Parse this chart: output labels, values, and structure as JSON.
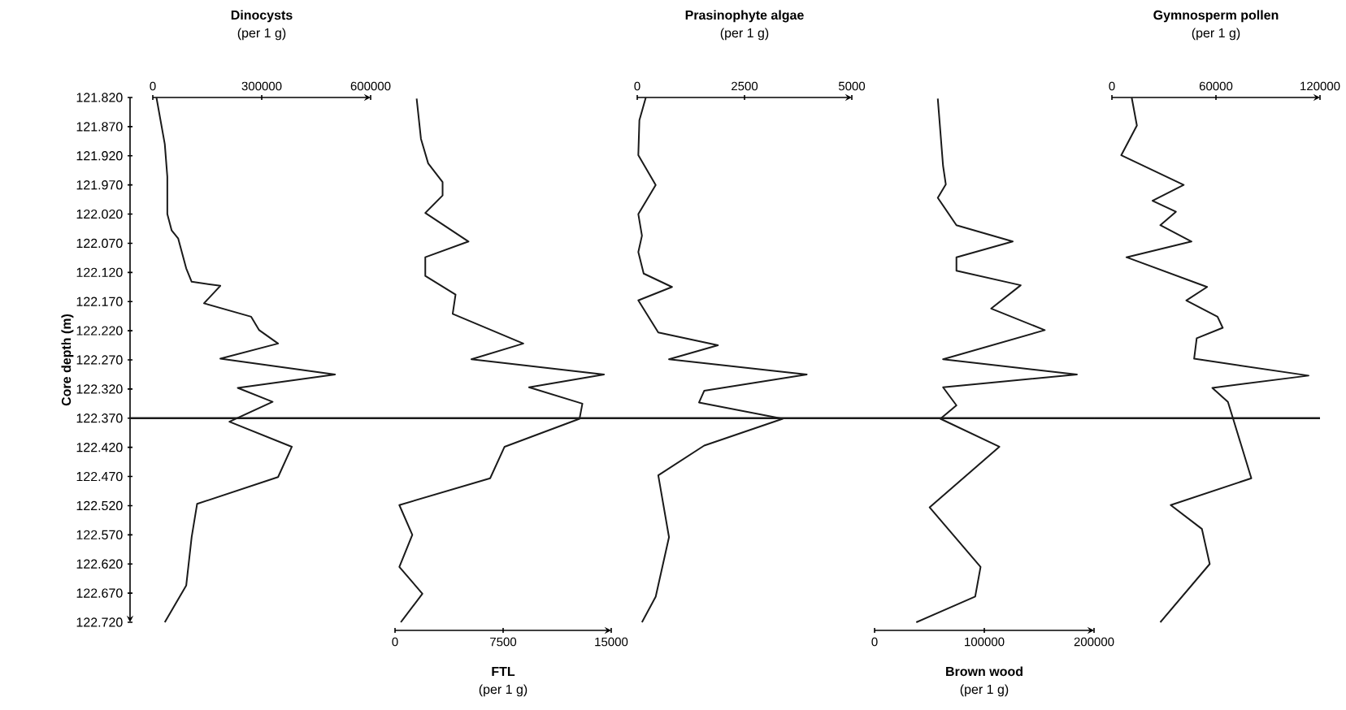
{
  "chart_data": [
    {
      "type": "line",
      "xlabel": "Dinocysts",
      "subtitle": "(per 1 g)",
      "ylabel": "Core depth (m)",
      "color": "#1a1a1a",
      "x": [
        10000,
        33000,
        40000,
        40000,
        52000,
        70000,
        92000,
        107000,
        186000,
        141000,
        271000,
        293000,
        345000,
        186000,
        502000,
        234000,
        330000,
        211000,
        383000,
        345000,
        122000,
        107000,
        92000,
        33000
      ],
      "values": [
        121.82,
        121.9,
        121.956,
        122.02,
        122.048,
        122.062,
        122.113,
        122.136,
        122.143,
        122.173,
        122.196,
        122.219,
        122.242,
        122.268,
        122.295,
        122.318,
        122.342,
        122.376,
        122.419,
        122.471,
        122.517,
        122.574,
        122.657,
        122.72
      ],
      "xlim": [
        0,
        600000
      ],
      "xticks": [
        0,
        300000,
        600000
      ],
      "ylim": [
        122.72,
        121.82
      ],
      "yticks": [
        {
          "value": 121.82,
          "label": "121.820"
        },
        {
          "value": 121.87,
          "label": "121.870"
        },
        {
          "value": 121.92,
          "label": "121.920"
        },
        {
          "value": 121.97,
          "label": "121.970"
        },
        {
          "value": 122.02,
          "label": "122.020"
        },
        {
          "value": 122.07,
          "label": "122.070"
        },
        {
          "value": 122.12,
          "label": "122.120"
        },
        {
          "value": 122.17,
          "label": "122.170"
        },
        {
          "value": 122.22,
          "label": "122.220"
        },
        {
          "value": 122.27,
          "label": "122.270"
        },
        {
          "value": 122.32,
          "label": "122.320"
        },
        {
          "value": 122.37,
          "label": "122.370"
        },
        {
          "value": 122.42,
          "label": "122.420"
        },
        {
          "value": 122.47,
          "label": "122.470"
        },
        {
          "value": 122.52,
          "label": "122.520"
        },
        {
          "value": 122.57,
          "label": "122.570"
        },
        {
          "value": 122.62,
          "label": "122.620"
        },
        {
          "value": 122.67,
          "label": "122.670"
        },
        {
          "value": 122.72,
          "label": "122.720"
        }
      ],
      "ref_lines": [
        {
          "axis": "y",
          "value": 122.37,
          "color": "#1a1a1a"
        }
      ]
    },
    {
      "type": "line",
      "xlabel": "FTL",
      "subtitle": "(per 1 g)",
      "color": "#1a1a1a",
      "tick_labels": "x",
      "x": [
        1500,
        1800,
        2300,
        3300,
        3300,
        2100,
        5100,
        2100,
        2100,
        4200,
        4000,
        8900,
        5300,
        14500,
        9300,
        13000,
        12800,
        7600,
        6600,
        300,
        1200,
        300,
        1900,
        400
      ],
      "values": [
        121.822,
        121.891,
        121.933,
        121.965,
        121.988,
        122.018,
        122.067,
        122.094,
        122.126,
        122.158,
        122.191,
        122.242,
        122.269,
        122.295,
        122.317,
        122.345,
        122.371,
        122.419,
        122.473,
        122.519,
        122.57,
        122.625,
        122.671,
        122.72
      ],
      "xlim": [
        0,
        15000
      ],
      "xticks": [
        0,
        7500,
        15000
      ],
      "ylim": [
        122.72,
        121.82
      ],
      "ref_lines": [
        {
          "axis": "y",
          "value": 122.37,
          "color": "#1a1a1a"
        }
      ]
    },
    {
      "type": "line",
      "xlabel": "Prasinophyte algae",
      "subtitle": "(per 1 g)",
      "color": "#1a1a1a",
      "tick_labels": "x",
      "x": [
        200,
        50,
        25,
        430,
        25,
        110,
        25,
        150,
        810,
        25,
        490,
        1880,
        740,
        3950,
        1560,
        1440,
        3390,
        1560,
        490,
        740,
        430,
        110
      ],
      "values": [
        121.82,
        121.859,
        121.919,
        121.97,
        122.02,
        122.057,
        122.085,
        122.122,
        122.145,
        122.168,
        122.223,
        122.245,
        122.269,
        122.295,
        122.323,
        122.343,
        122.371,
        122.417,
        122.468,
        122.574,
        122.676,
        122.72
      ],
      "xlim": [
        0,
        5000
      ],
      "xticks": [
        0,
        2500,
        5000
      ],
      "ylim": [
        122.72,
        121.82
      ],
      "ref_lines": [
        {
          "axis": "y",
          "value": 122.37,
          "color": "#1a1a1a"
        }
      ]
    },
    {
      "type": "line",
      "xlabel": "Brown wood",
      "subtitle": "(per 1 g)",
      "color": "#1a1a1a",
      "tick_labels": "x",
      "x": [
        57600,
        62400,
        64900,
        57600,
        74600,
        125900,
        74600,
        74600,
        133200,
        106300,
        155100,
        62400,
        184400,
        62400,
        74600,
        60000,
        113700,
        50200,
        96600,
        91700,
        38000
      ],
      "values": [
        121.822,
        121.937,
        121.969,
        121.992,
        122.039,
        122.067,
        122.094,
        122.117,
        122.142,
        122.182,
        122.219,
        122.269,
        122.295,
        122.317,
        122.348,
        122.371,
        122.419,
        122.523,
        122.625,
        122.676,
        122.72
      ],
      "xlim": [
        0,
        200000
      ],
      "xticks": [
        0,
        100000,
        200000
      ],
      "ylim": [
        122.72,
        121.82
      ],
      "ref_lines": [
        {
          "axis": "y",
          "value": 122.37,
          "color": "#1a1a1a"
        }
      ]
    },
    {
      "type": "line",
      "xlabel": "Gymnosperm pollen",
      "subtitle": "(per 1 g)",
      "color": "#1a1a1a",
      "tick_labels": "x",
      "x": [
        11400,
        14400,
        5400,
        41400,
        23400,
        36900,
        27900,
        45900,
        8400,
        54900,
        42900,
        60900,
        63900,
        48900,
        47400,
        113400,
        57900,
        66900,
        69900,
        80400,
        33900,
        51900,
        56400,
        27900
      ],
      "values": [
        121.82,
        121.868,
        121.919,
        121.97,
        121.997,
        122.016,
        122.039,
        122.067,
        122.094,
        122.145,
        122.168,
        122.196,
        122.215,
        122.233,
        122.268,
        122.297,
        122.318,
        122.342,
        122.371,
        122.473,
        122.519,
        122.56,
        122.62,
        122.72
      ],
      "xlim": [
        0,
        120000
      ],
      "xticks": [
        0,
        60000,
        120000
      ],
      "ylim": [
        122.72,
        121.82
      ],
      "ref_lines": [
        {
          "axis": "y",
          "value": 122.37,
          "color": "#1a1a1a"
        }
      ]
    }
  ]
}
